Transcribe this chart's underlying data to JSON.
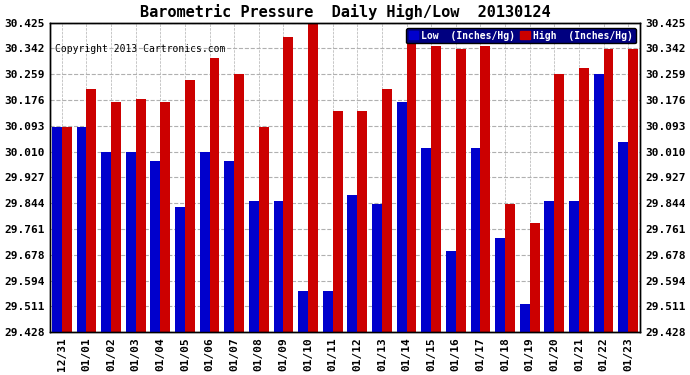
{
  "title": "Barometric Pressure  Daily High/Low  20130124",
  "copyright": "Copyright 2013 Cartronics.com",
  "categories": [
    "12/31",
    "01/01",
    "01/02",
    "01/03",
    "01/04",
    "01/05",
    "01/06",
    "01/07",
    "01/08",
    "01/09",
    "01/10",
    "01/11",
    "01/12",
    "01/13",
    "01/14",
    "01/15",
    "01/16",
    "01/17",
    "01/18",
    "01/19",
    "01/20",
    "01/21",
    "01/22",
    "01/23"
  ],
  "low_values": [
    30.09,
    30.09,
    30.01,
    30.01,
    29.98,
    29.83,
    30.01,
    29.98,
    29.85,
    29.85,
    29.56,
    29.56,
    29.87,
    29.84,
    30.17,
    30.02,
    29.69,
    30.02,
    29.73,
    29.52,
    29.85,
    29.85,
    30.26,
    30.04
  ],
  "high_values": [
    30.09,
    30.21,
    30.17,
    30.18,
    30.17,
    30.24,
    30.31,
    30.26,
    30.09,
    30.38,
    30.43,
    30.14,
    30.14,
    30.21,
    30.37,
    30.35,
    30.34,
    30.35,
    29.84,
    29.78,
    30.26,
    30.28,
    30.34,
    30.34
  ],
  "low_color": "#0000cc",
  "high_color": "#cc0000",
  "bg_color": "#ffffff",
  "grid_color": "#b0b0b0",
  "ylim_min": 29.428,
  "ylim_max": 30.425,
  "yticks": [
    29.428,
    29.511,
    29.594,
    29.678,
    29.761,
    29.844,
    29.927,
    30.01,
    30.093,
    30.176,
    30.259,
    30.342,
    30.425
  ],
  "title_fontsize": 11,
  "tick_fontsize": 8,
  "legend_low_label": "Low  (Inches/Hg)",
  "legend_high_label": "High  (Inches/Hg)"
}
